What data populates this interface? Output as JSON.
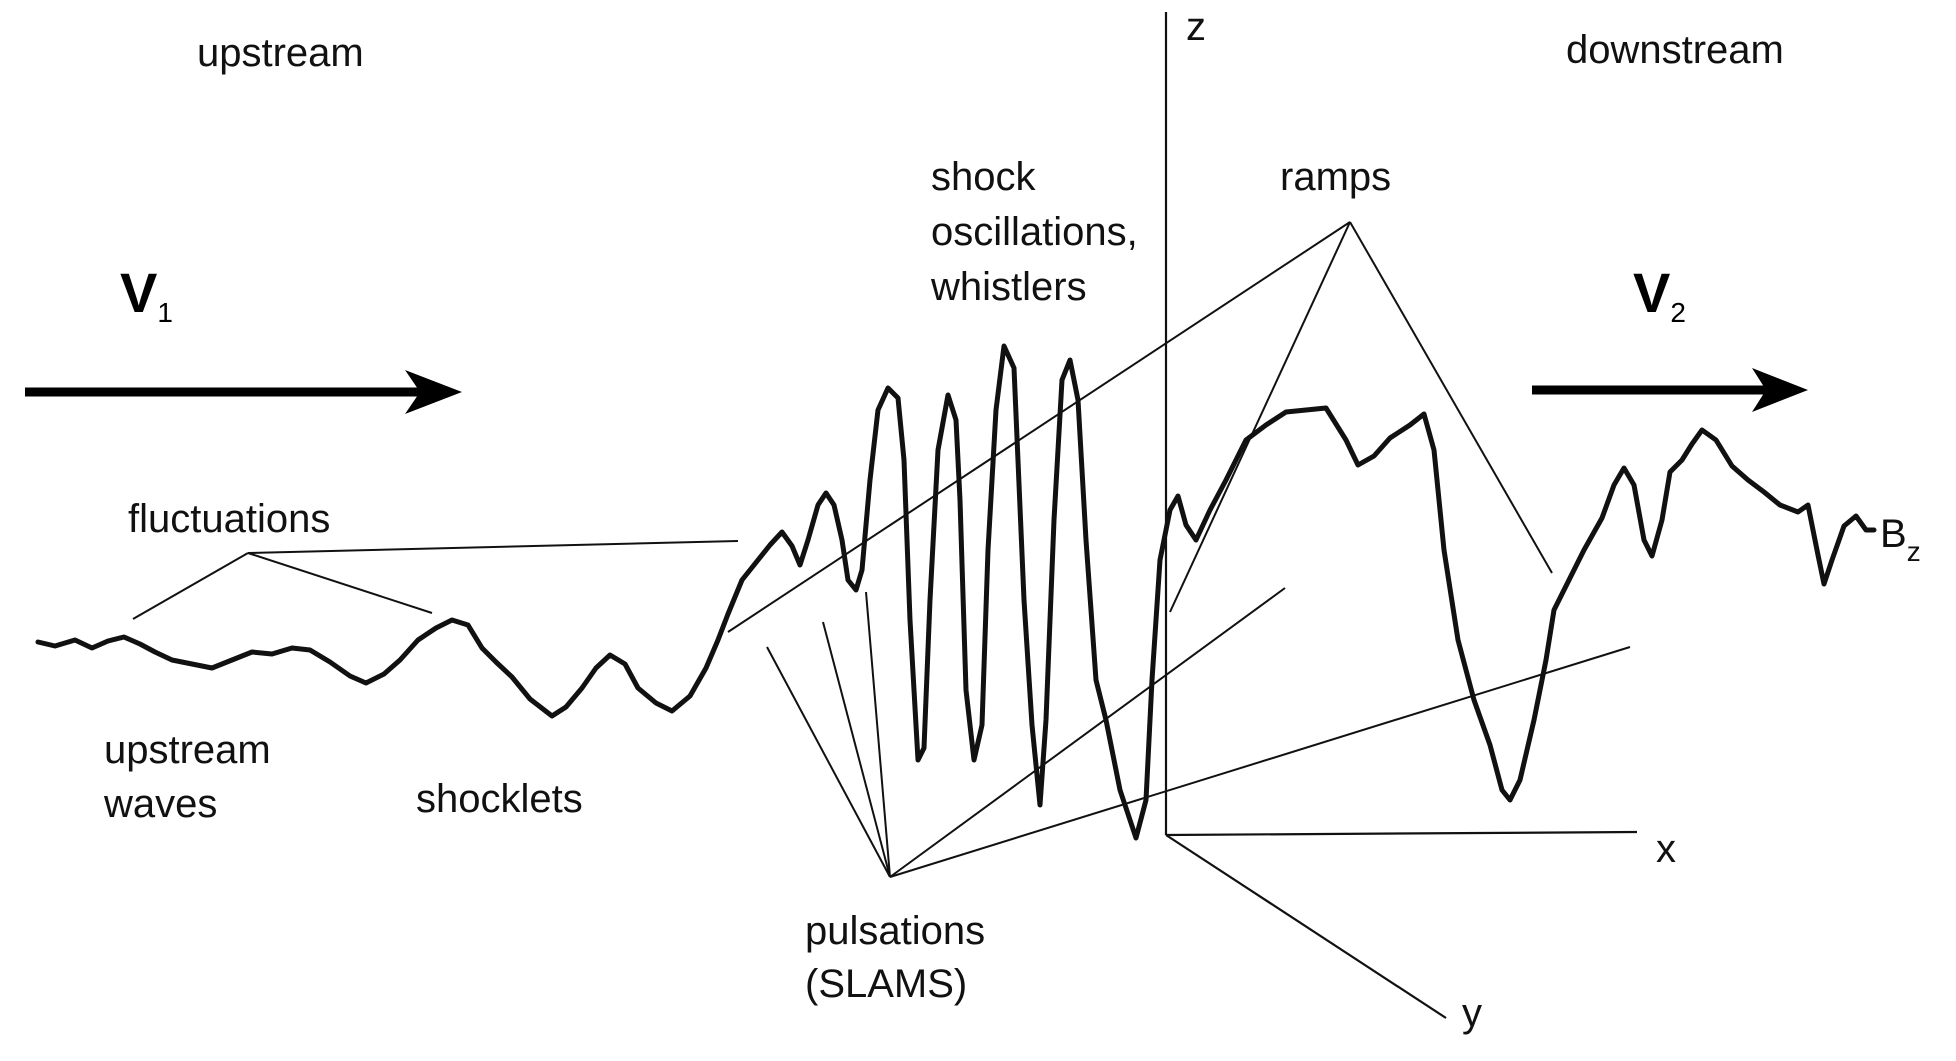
{
  "labels": {
    "upstream": "upstream",
    "downstream": "downstream",
    "fluctuations": "fluctuations",
    "upstream_waves": [
      "upstream",
      "waves"
    ],
    "shocklets": "shocklets",
    "shock_oscillations": [
      "shock",
      "oscillations,",
      "whistlers"
    ],
    "ramps": "ramps",
    "pulsations": [
      "pulsations",
      "(SLAMS)"
    ]
  },
  "velocities": {
    "v1": {
      "symbol": "V",
      "subscript": "1"
    },
    "v2": {
      "symbol": "V",
      "subscript": "2"
    }
  },
  "axes": {
    "x": "x",
    "y": "y",
    "z": "z"
  },
  "signal_label": {
    "symbol": "B",
    "subscript": "z"
  }
}
